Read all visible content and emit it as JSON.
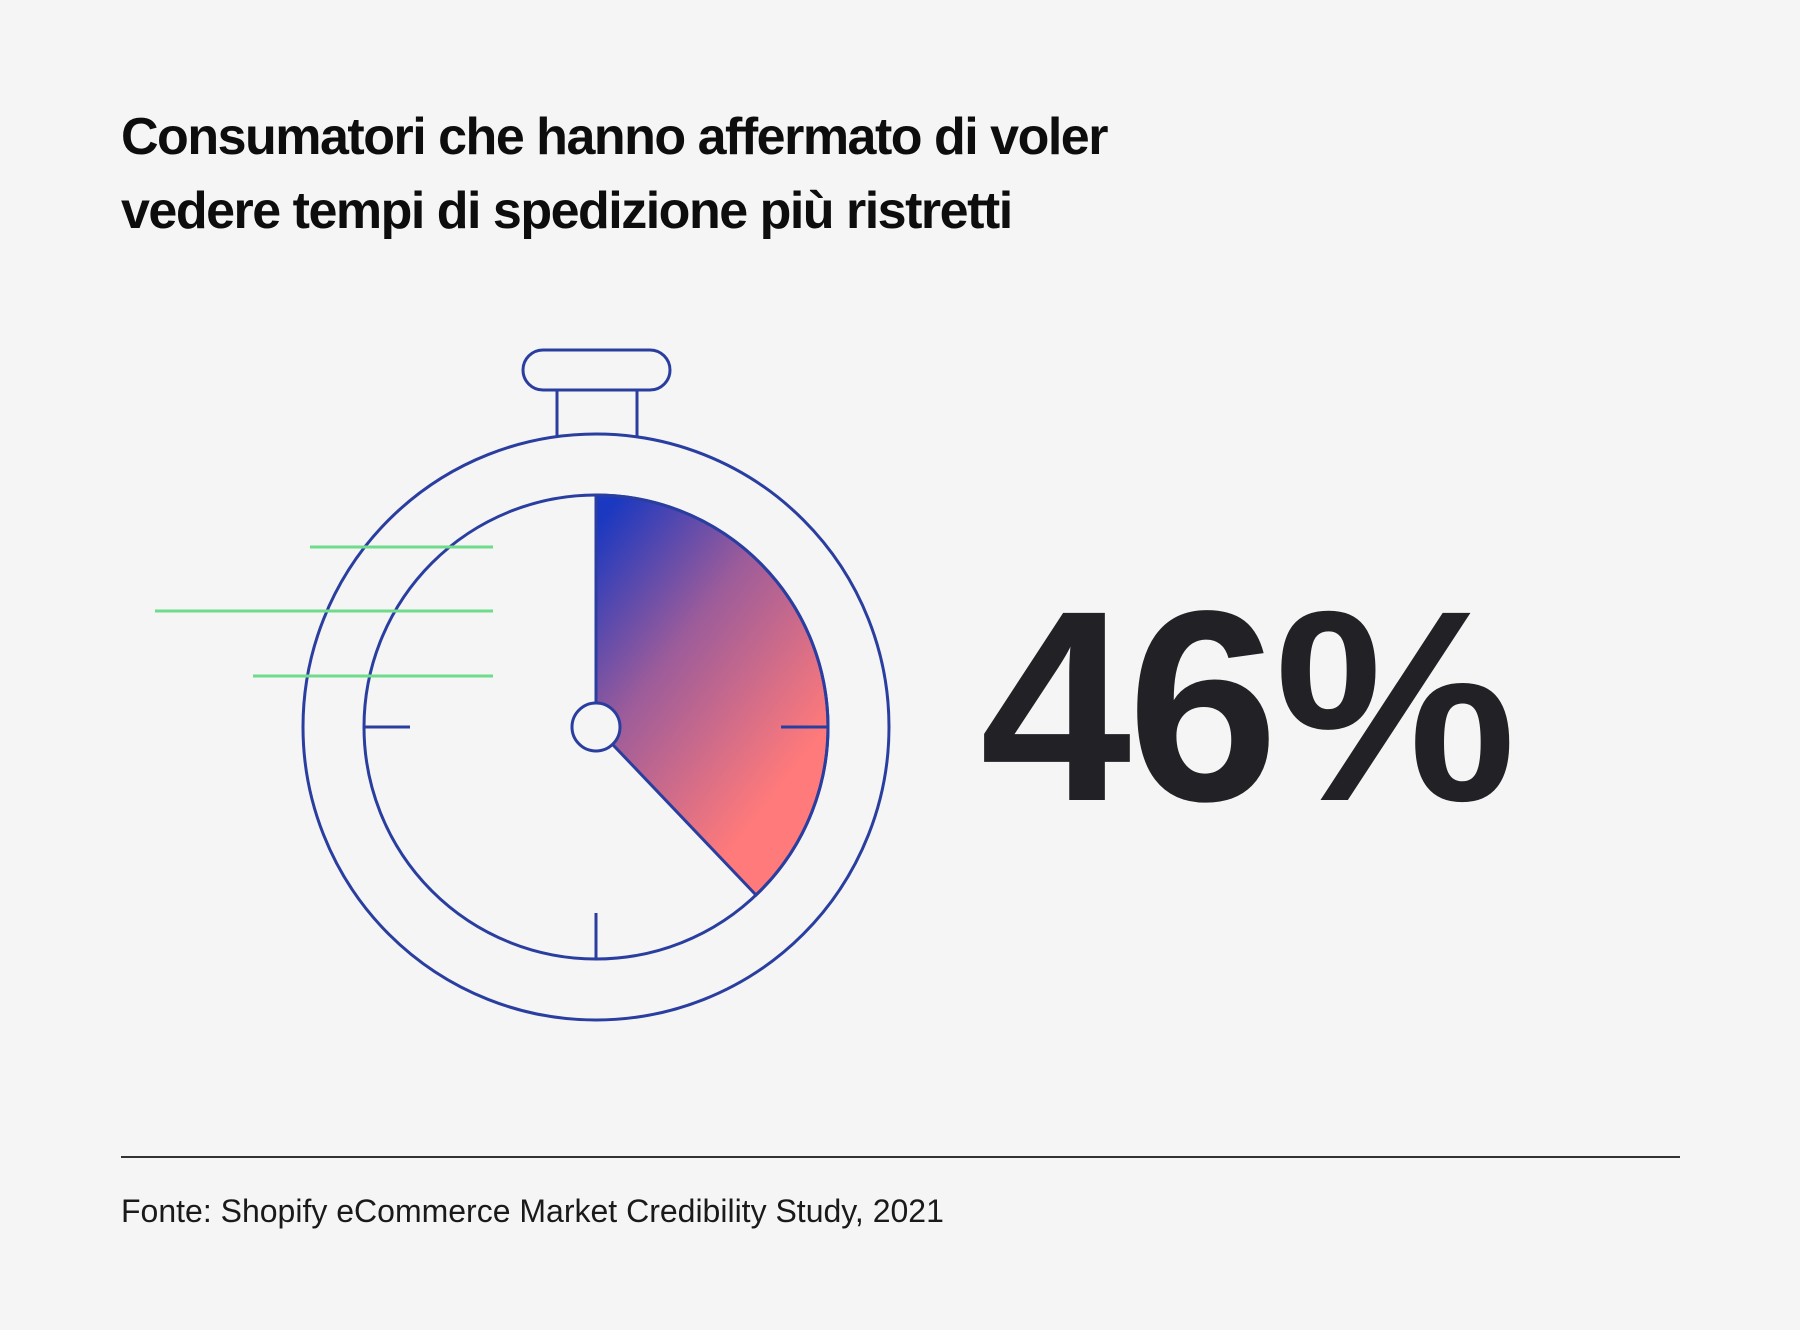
{
  "title": {
    "line1": "Consumatori che hanno affermato di voler",
    "line2": "vedere tempi di spedizione più ristretti"
  },
  "stat": {
    "value_label": "46%",
    "value_percent": 46
  },
  "source": "Fonte: Shopify eCommerce Market Credibility Study, 2021",
  "colors": {
    "background": "#f5f5f5",
    "outline": "#2a3ea0",
    "speed_lines": "#6fdc8c",
    "gradient_start": "#1a38c0",
    "gradient_end": "#ff7a7a",
    "text": "#222226"
  },
  "icons": [
    "stopwatch-icon"
  ]
}
